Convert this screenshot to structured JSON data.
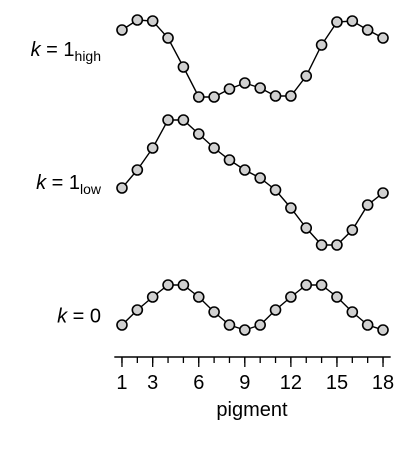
{
  "chart_data": {
    "type": "line",
    "xlabel": "pigment",
    "xlim": [
      0.5,
      18.5
    ],
    "xticks": [
      1,
      3,
      6,
      9,
      12,
      15,
      18
    ],
    "minor_xticks": [
      1,
      2,
      3,
      4,
      5,
      6,
      7,
      8,
      9,
      10,
      11,
      12,
      13,
      14,
      15,
      16,
      17,
      18
    ],
    "x": [
      1,
      2,
      3,
      4,
      5,
      6,
      7,
      8,
      9,
      10,
      11,
      12,
      13,
      14,
      15,
      16,
      17,
      18
    ],
    "color": "#000000",
    "marker_fill": "#d0d0d0",
    "panels": [
      {
        "label_var": "k",
        "label_rest": "= 1",
        "label_sub": "high",
        "ylim": [
          0,
          90
        ],
        "values": [
          72,
          82,
          81,
          64,
          35,
          5,
          5,
          13,
          19,
          14,
          6,
          6,
          26,
          57,
          80,
          81,
          72,
          64
        ]
      },
      {
        "label_var": "k",
        "label_rest": "= 1",
        "label_sub": "low",
        "ylim": [
          0,
          140
        ],
        "values": [
          62,
          80,
          102,
          130,
          130,
          116,
          102,
          90,
          80,
          72,
          60,
          42,
          22,
          5,
          5,
          20,
          45,
          57
        ]
      },
      {
        "label_var": "k",
        "label_rest": "= 0",
        "ylim": [
          0,
          55
        ],
        "values": [
          10,
          25,
          38,
          50,
          50,
          38,
          23,
          10,
          5,
          10,
          25,
          38,
          50,
          50,
          38,
          23,
          10,
          5
        ]
      }
    ]
  }
}
